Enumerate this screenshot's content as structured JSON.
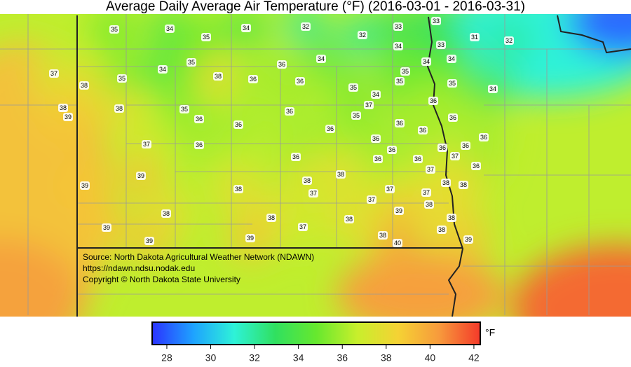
{
  "title": "Average Daily Average Air Temperature (°F) (2016-03-01 - 2016-03-31)",
  "stations": [
    35,
    34,
    35,
    34,
    32,
    32,
    33,
    33,
    31,
    32,
    34,
    33,
    34,
    34,
    34,
    37,
    35,
    34,
    35,
    38,
    36,
    36,
    36,
    35,
    35,
    35,
    34,
    35,
    34,
    38,
    38,
    39,
    38,
    35,
    36,
    36,
    36,
    37,
    35,
    36,
    36,
    36,
    36,
    36,
    36,
    36,
    37,
    36,
    36,
    36,
    36,
    37,
    36,
    36,
    36,
    36,
    37,
    39,
    38,
    38,
    38,
    38,
    39,
    38,
    37,
    37,
    37,
    37,
    38,
    39,
    38,
    38,
    38,
    38,
    37,
    39,
    38,
    38,
    39,
    39,
    39,
    40
  ],
  "source": [
    "Source: North Dakota Agricultural Weather Network (NDAWN)",
    "https://ndawn.ndsu.nodak.edu",
    "Copyright © North Dakota State University"
  ],
  "colorbar": {
    "lim": [
      27.33,
      42.29
    ],
    "ticks": [
      28,
      30,
      32,
      34,
      36,
      38,
      40,
      42
    ],
    "unit": "°F",
    "colors": [
      "#2b33ff",
      "#1ea2ff",
      "#2ef2d8",
      "#30e060",
      "#66e82e",
      "#c8ef2c",
      "#f5d234",
      "#f79a3c",
      "#f43a2a"
    ]
  }
}
